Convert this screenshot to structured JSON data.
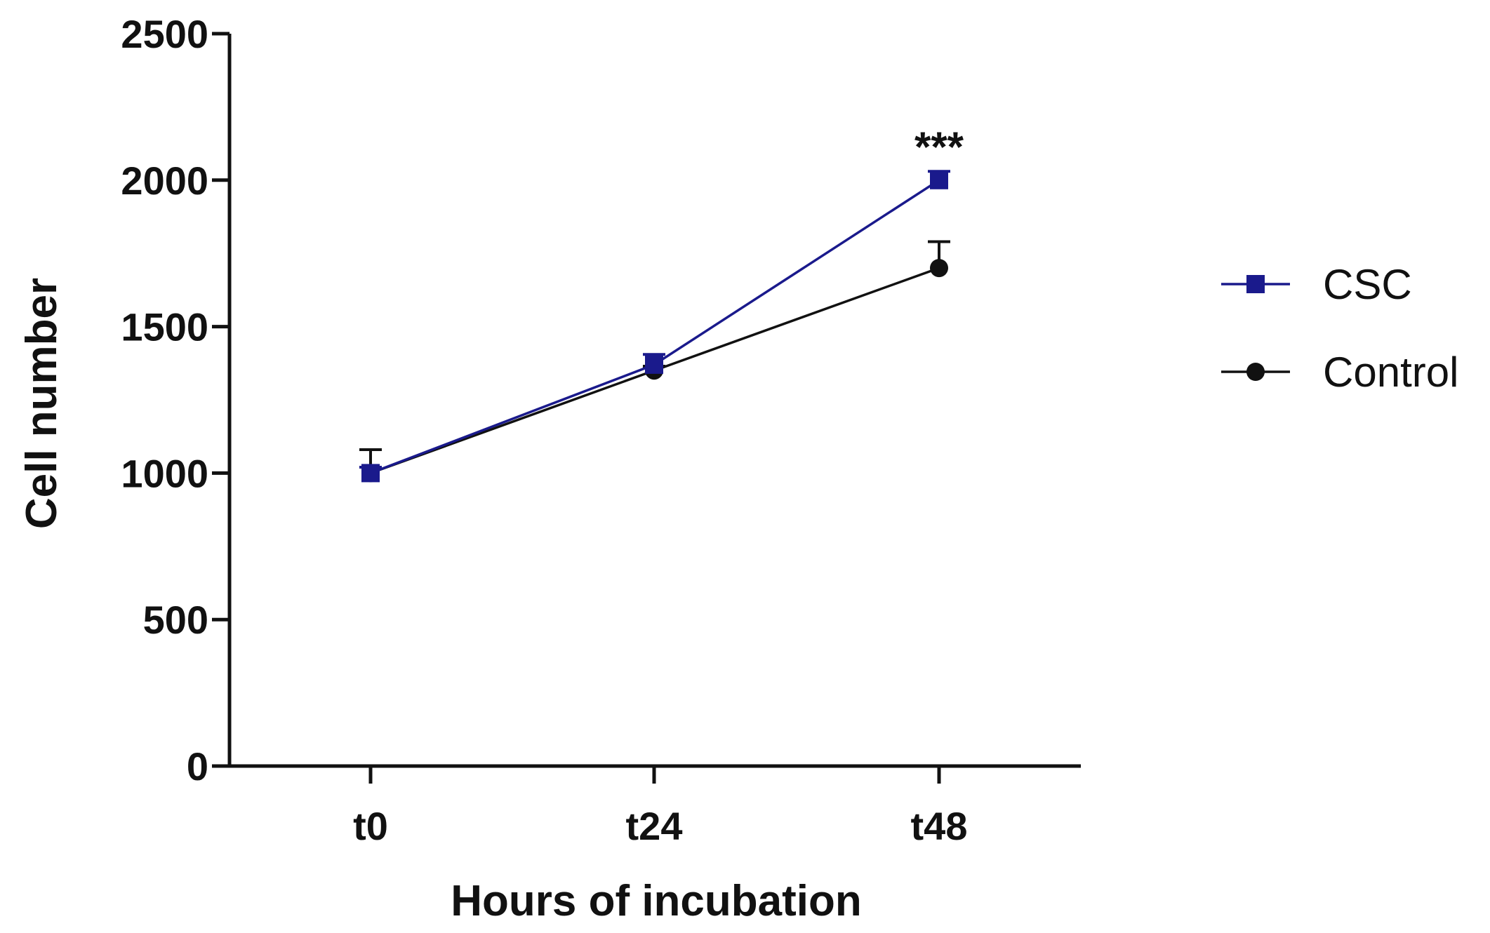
{
  "chart_data": {
    "type": "line",
    "title": "",
    "xlabel": "Hours of incubation",
    "ylabel": "Cell number",
    "categories": [
      "t0",
      "t24",
      "t48"
    ],
    "ylim": [
      0,
      2500
    ],
    "yticks": [
      "0",
      "500",
      "1000",
      "1500",
      "2000",
      "2500"
    ],
    "yticks_values": [
      0,
      500,
      1000,
      1500,
      2000,
      2500
    ],
    "grid": false,
    "legend_position": "right",
    "series": [
      {
        "name": "CSC",
        "values": [
          1000,
          1370,
          2000
        ],
        "errors": [
          20,
          35,
          30
        ],
        "color": "#1a1a8c",
        "marker": "square"
      },
      {
        "name": "Control",
        "values": [
          1000,
          1350,
          1700
        ],
        "errors": [
          80,
          15,
          90
        ],
        "color": "#111111",
        "marker": "circle"
      }
    ],
    "annotations": [
      {
        "text": "***",
        "category": "t48",
        "y": 2160
      }
    ]
  }
}
